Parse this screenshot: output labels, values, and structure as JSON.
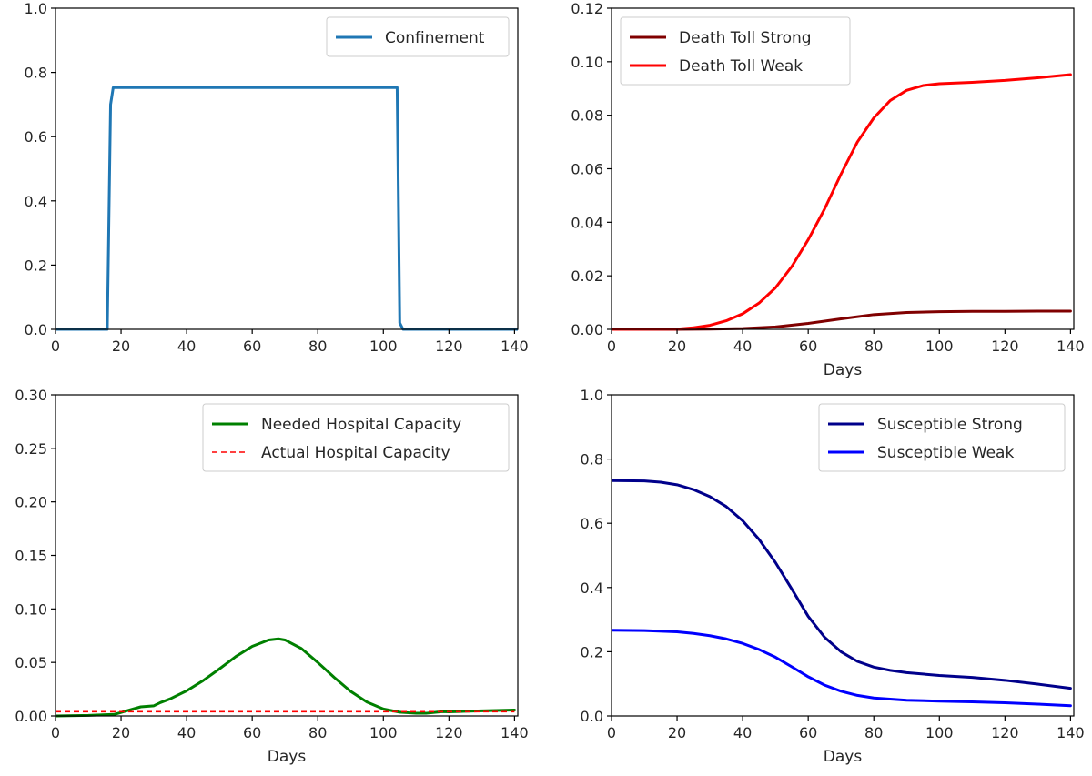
{
  "chart_data": [
    {
      "type": "line",
      "xlabel": "",
      "ylabel": "",
      "xlim": [
        0,
        141
      ],
      "ylim": [
        0,
        1.0
      ],
      "xticks": [
        "0",
        "20",
        "40",
        "60",
        "80",
        "100",
        "120",
        "140"
      ],
      "yticks": [
        "0.0",
        "0.2",
        "0.4",
        "0.6",
        "0.8",
        "1.0"
      ],
      "legend": "top-right",
      "grid": false,
      "series": [
        {
          "name": "Confinement",
          "color": "#1f77b4",
          "dash": "",
          "x": [
            0,
            15.8,
            16.8,
            17.6,
            104.2,
            105.0,
            106.0,
            141
          ],
          "y": [
            0.0,
            0.0,
            0.7,
            0.753,
            0.753,
            0.02,
            0.0,
            0.0
          ]
        }
      ]
    },
    {
      "type": "line",
      "xlabel": "Days",
      "ylabel": "",
      "xlim": [
        0,
        141
      ],
      "ylim": [
        0,
        0.12
      ],
      "xticks": [
        "0",
        "20",
        "40",
        "60",
        "80",
        "100",
        "120",
        "140"
      ],
      "yticks": [
        "0.00",
        "0.02",
        "0.04",
        "0.06",
        "0.08",
        "0.10",
        "0.12"
      ],
      "legend": "top-left",
      "grid": false,
      "series": [
        {
          "name": "Death Toll Strong",
          "color": "#800000",
          "dash": "",
          "x": [
            0,
            20,
            30,
            40,
            50,
            60,
            70,
            80,
            90,
            100,
            110,
            120,
            130,
            140
          ],
          "y": [
            0,
            0,
            0.0001,
            0.0003,
            0.0009,
            0.0022,
            0.0039,
            0.0055,
            0.0063,
            0.0066,
            0.0067,
            0.0067,
            0.0068,
            0.0068
          ]
        },
        {
          "name": "Death Toll Weak",
          "color": "#ff0000",
          "dash": "",
          "x": [
            0,
            20,
            25,
            30,
            35,
            40,
            45,
            50,
            55,
            60,
            65,
            70,
            75,
            80,
            85,
            90,
            95,
            100,
            110,
            120,
            130,
            140
          ],
          "y": [
            0,
            0.0001,
            0.0006,
            0.0015,
            0.0032,
            0.0058,
            0.0098,
            0.0155,
            0.0235,
            0.0335,
            0.045,
            0.058,
            0.07,
            0.079,
            0.0855,
            0.0893,
            0.0911,
            0.0918,
            0.0923,
            0.093,
            0.094,
            0.0952
          ]
        }
      ]
    },
    {
      "type": "line",
      "xlabel": "Days",
      "ylabel": "",
      "xlim": [
        0,
        141
      ],
      "ylim": [
        0,
        0.3
      ],
      "xticks": [
        "0",
        "20",
        "40",
        "60",
        "80",
        "100",
        "120",
        "140"
      ],
      "yticks": [
        "0.00",
        "0.05",
        "0.10",
        "0.15",
        "0.20",
        "0.25",
        "0.30"
      ],
      "legend": "top-right",
      "grid": false,
      "series": [
        {
          "name": "Needed Hospital Capacity",
          "color": "#008000",
          "dash": "",
          "x": [
            0,
            10,
            18,
            22,
            26,
            30,
            32,
            35,
            40,
            45,
            50,
            55,
            60,
            65,
            68,
            70,
            75,
            80,
            85,
            90,
            95,
            100,
            105,
            110,
            113,
            118,
            120,
            130,
            140
          ],
          "y": [
            0,
            0.0005,
            0.0015,
            0.005,
            0.0085,
            0.0095,
            0.0125,
            0.016,
            0.0235,
            0.033,
            0.044,
            0.0555,
            0.065,
            0.071,
            0.072,
            0.071,
            0.063,
            0.05,
            0.036,
            0.023,
            0.013,
            0.0065,
            0.0035,
            0.0025,
            0.0025,
            0.004,
            0.0038,
            0.0048,
            0.0055
          ]
        },
        {
          "name": "Actual Hospital Capacity",
          "color": "#ff0000",
          "dash": "6,4",
          "x": [
            0,
            140
          ],
          "y": [
            0.004,
            0.004
          ]
        }
      ]
    },
    {
      "type": "line",
      "xlabel": "Days",
      "ylabel": "",
      "xlim": [
        0,
        141
      ],
      "ylim": [
        0,
        1.0
      ],
      "xticks": [
        "0",
        "20",
        "40",
        "60",
        "80",
        "100",
        "120",
        "140"
      ],
      "yticks": [
        "0.0",
        "0.2",
        "0.4",
        "0.6",
        "0.8",
        "1.0"
      ],
      "legend": "top-right",
      "grid": false,
      "series": [
        {
          "name": "Susceptible Strong",
          "color": "#00008b",
          "dash": "",
          "x": [
            0,
            10,
            15,
            20,
            25,
            30,
            35,
            40,
            45,
            50,
            55,
            60,
            65,
            70,
            75,
            80,
            85,
            90,
            100,
            110,
            120,
            130,
            140
          ],
          "y": [
            0.733,
            0.732,
            0.728,
            0.72,
            0.705,
            0.683,
            0.652,
            0.608,
            0.55,
            0.478,
            0.395,
            0.31,
            0.245,
            0.2,
            0.17,
            0.152,
            0.142,
            0.135,
            0.126,
            0.12,
            0.111,
            0.099,
            0.086
          ]
        },
        {
          "name": "Susceptible Weak",
          "color": "#0000ff",
          "dash": "",
          "x": [
            0,
            10,
            20,
            25,
            30,
            35,
            40,
            45,
            50,
            55,
            60,
            65,
            70,
            75,
            80,
            90,
            100,
            110,
            120,
            130,
            140
          ],
          "y": [
            0.267,
            0.266,
            0.262,
            0.257,
            0.25,
            0.24,
            0.226,
            0.207,
            0.183,
            0.153,
            0.122,
            0.096,
            0.077,
            0.064,
            0.056,
            0.049,
            0.046,
            0.044,
            0.041,
            0.037,
            0.032
          ]
        }
      ]
    }
  ]
}
